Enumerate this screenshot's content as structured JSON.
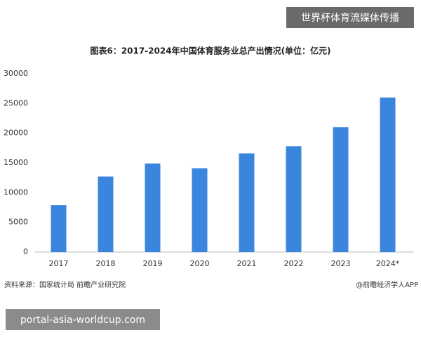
{
  "chart_data": {
    "type": "bar",
    "title": "图表6：2017-2024年中国体育服务业总产出情况(单位：亿元)",
    "categories": [
      "2017",
      "2018",
      "2019",
      "2020",
      "2021",
      "2022",
      "2023",
      "2024*"
    ],
    "values": [
      7900,
      12700,
      14900,
      14100,
      16600,
      17800,
      21000,
      26000
    ],
    "color": "#3a86de",
    "ylim": [
      0,
      30000
    ],
    "yticks": [
      0,
      5000,
      10000,
      15000,
      20000,
      25000,
      30000
    ],
    "grid": false,
    "source": "资料来源：国家统计局 前瞻产业研究院",
    "credit": "@前瞻经济学人APP",
    "overlay_top": "世界杯体育流媒体传播",
    "overlay_bottom": "portal-asia-worldcup.com"
  }
}
